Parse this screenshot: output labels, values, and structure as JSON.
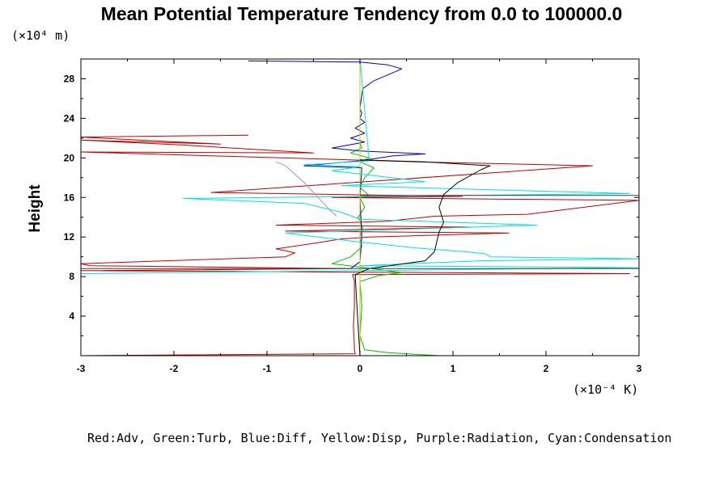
{
  "chart_data": {
    "type": "line",
    "title": "Mean Potential Temperature Tendency from 0.0 to 100000.0",
    "ylabel": "Height",
    "y_unit": "(×10⁴ m)",
    "x_unit": "(×10⁻⁴ K)",
    "note": "Red:Adv, Green:Turb, Blue:Diff, Yellow:Disp, Purple:Radiation, Cyan:Condensation",
    "xlim": [
      -3,
      3
    ],
    "ylim": [
      0,
      30
    ],
    "x_ticks": [
      "-3",
      "-2",
      "-1",
      "0",
      "1",
      "2",
      "3"
    ],
    "y_ticks": [
      "4",
      "8",
      "12",
      "16",
      "20",
      "24",
      "28"
    ],
    "grid": false,
    "series": [
      {
        "name": "Adv",
        "color": "#c00000",
        "points": [
          [
            -3.0,
            0.0
          ],
          [
            -0.05,
            0.2
          ],
          [
            -0.06,
            0.5
          ],
          [
            -0.06,
            1
          ],
          [
            -0.07,
            3
          ],
          [
            -0.06,
            5
          ],
          [
            -0.06,
            7.6
          ],
          [
            -0.08,
            8.2
          ],
          [
            2.9,
            8.3
          ],
          [
            -3.0,
            8.6
          ],
          [
            -0.1,
            8.8
          ],
          [
            -2.9,
            9.1
          ],
          [
            -3.0,
            9.3
          ],
          [
            -0.8,
            10
          ],
          [
            -0.7,
            10.4
          ],
          [
            -0.9,
            10.8
          ],
          [
            -0.4,
            11.5
          ],
          [
            -0.2,
            11.8
          ],
          [
            0.1,
            12.0
          ],
          [
            1.6,
            12.4
          ],
          [
            -0.8,
            12.6
          ],
          [
            0.2,
            12.8
          ],
          [
            1.2,
            13.0
          ],
          [
            -0.9,
            13.2
          ],
          [
            0.3,
            13.6
          ],
          [
            0.8,
            14.1
          ],
          [
            1.8,
            14.3
          ],
          [
            3.0,
            15.7
          ],
          [
            -0.3,
            16.0
          ],
          [
            1.1,
            16.1
          ],
          [
            -1.6,
            16.5
          ],
          [
            2.5,
            19.2
          ],
          [
            0.6,
            19.6
          ],
          [
            -3.0,
            20.6
          ],
          [
            -0.5,
            20.5
          ],
          [
            -1.9,
            21.3
          ],
          [
            -3.0,
            21.8
          ],
          [
            -1.5,
            21.4
          ],
          [
            -3.0,
            22.1
          ],
          [
            -1.2,
            22.3
          ]
        ]
      },
      {
        "name": "Turb",
        "color": "#00c000",
        "points": [
          [
            0.85,
            0.0
          ],
          [
            0.3,
            0.3
          ],
          [
            0.05,
            0.6
          ],
          [
            0.0,
            2
          ],
          [
            0.02,
            5
          ],
          [
            0.0,
            7.5
          ],
          [
            0.2,
            8.1
          ],
          [
            0.45,
            8.4
          ],
          [
            0.05,
            8.9
          ],
          [
            -0.3,
            9.3
          ],
          [
            -0.1,
            10
          ],
          [
            0.02,
            11
          ],
          [
            0.0,
            12
          ],
          [
            0.03,
            13
          ],
          [
            -0.02,
            14
          ],
          [
            0.05,
            15
          ],
          [
            0.0,
            16
          ],
          [
            0.1,
            16.2
          ],
          [
            0.0,
            17
          ],
          [
            0.05,
            18
          ],
          [
            0.15,
            19
          ],
          [
            0.0,
            19.6
          ],
          [
            0.1,
            20
          ],
          [
            -0.1,
            20.5
          ],
          [
            0.02,
            21
          ],
          [
            0.0,
            21.5
          ]
        ]
      },
      {
        "name": "Diff",
        "color": "#0000c0",
        "points": [
          [
            -0.1,
            8.8
          ],
          [
            0.0,
            9.5
          ],
          [
            0.02,
            12
          ],
          [
            0.0,
            16
          ],
          [
            0.02,
            19
          ],
          [
            -0.6,
            19.2
          ],
          [
            0.0,
            19.7
          ],
          [
            0.35,
            20.2
          ],
          [
            0.7,
            20.4
          ],
          [
            0.0,
            20.7
          ],
          [
            -0.3,
            21.0
          ],
          [
            0.05,
            21.6
          ],
          [
            -0.1,
            22
          ],
          [
            0.05,
            22.5
          ],
          [
            -0.05,
            23
          ],
          [
            0.05,
            23.6
          ],
          [
            0.0,
            24
          ],
          [
            0.02,
            24.5
          ],
          [
            0.0,
            25
          ],
          [
            0.03,
            27
          ],
          [
            0.15,
            27.8
          ],
          [
            0.45,
            29.0
          ],
          [
            0.3,
            29.4
          ],
          [
            0.0,
            29.7
          ],
          [
            -1.2,
            29.8
          ]
        ]
      },
      {
        "name": "Disp",
        "color": "#c8c800",
        "points": [
          [
            0.0,
            0.0
          ],
          [
            0.0,
            30.0
          ]
        ]
      },
      {
        "name": "Radiation",
        "color": "#c080d0",
        "points": [
          [
            -0.25,
            14.1
          ],
          [
            -0.3,
            14.5
          ],
          [
            -0.45,
            16.0
          ],
          [
            -0.6,
            17.5
          ],
          [
            -0.8,
            19.2
          ],
          [
            -0.9,
            19.6
          ]
        ]
      },
      {
        "name": "Condensation",
        "color": "#00e0e0",
        "points": [
          [
            -3.0,
            8.3
          ],
          [
            0.0,
            8.6
          ],
          [
            3.0,
            8.9
          ],
          [
            0.0,
            9.1
          ],
          [
            1.3,
            9.6
          ],
          [
            3.0,
            9.8
          ],
          [
            1.4,
            10.0
          ],
          [
            1.35,
            10.3
          ],
          [
            1.15,
            10.5
          ],
          [
            0.6,
            10.9
          ],
          [
            -0.1,
            11.6
          ],
          [
            -0.8,
            12.4
          ],
          [
            1.9,
            13.2
          ],
          [
            0.0,
            13.8
          ],
          [
            -0.2,
            14.5
          ],
          [
            -0.6,
            15.4
          ],
          [
            -1.9,
            15.9
          ],
          [
            2.9,
            16.4
          ],
          [
            -0.2,
            17.2
          ],
          [
            0.7,
            17.6
          ],
          [
            -0.3,
            18.7
          ],
          [
            0.0,
            19.1
          ],
          [
            -0.6,
            19.3
          ],
          [
            0.1,
            19.7
          ],
          [
            0.0,
            30.0
          ]
        ]
      },
      {
        "name": "",
        "color": "#000000",
        "points": [
          [
            0.0,
            0.0
          ],
          [
            -0.02,
            3
          ],
          [
            -0.05,
            7.8
          ],
          [
            -0.05,
            8.2
          ],
          [
            0.1,
            8.8
          ],
          [
            0.7,
            9.6
          ],
          [
            0.8,
            10.5
          ],
          [
            0.85,
            12.5
          ],
          [
            0.9,
            13.5
          ],
          [
            0.85,
            15.0
          ],
          [
            0.9,
            16.3
          ],
          [
            1.05,
            17.5
          ],
          [
            1.3,
            18.8
          ],
          [
            1.4,
            19.2
          ],
          [
            0.7,
            19.6
          ],
          [
            0.0,
            19.8
          ]
        ]
      },
      {
        "name": "",
        "color": "#404040",
        "points": [
          [
            0.0,
            16.2
          ],
          [
            3.0,
            16.2
          ]
        ]
      },
      {
        "name": "",
        "color": "#404040",
        "points": [
          [
            -1.6,
            8.8
          ],
          [
            -3.0,
            8.8
          ],
          [
            1.5,
            8.8
          ],
          [
            3.0,
            8.8
          ]
        ]
      }
    ]
  }
}
